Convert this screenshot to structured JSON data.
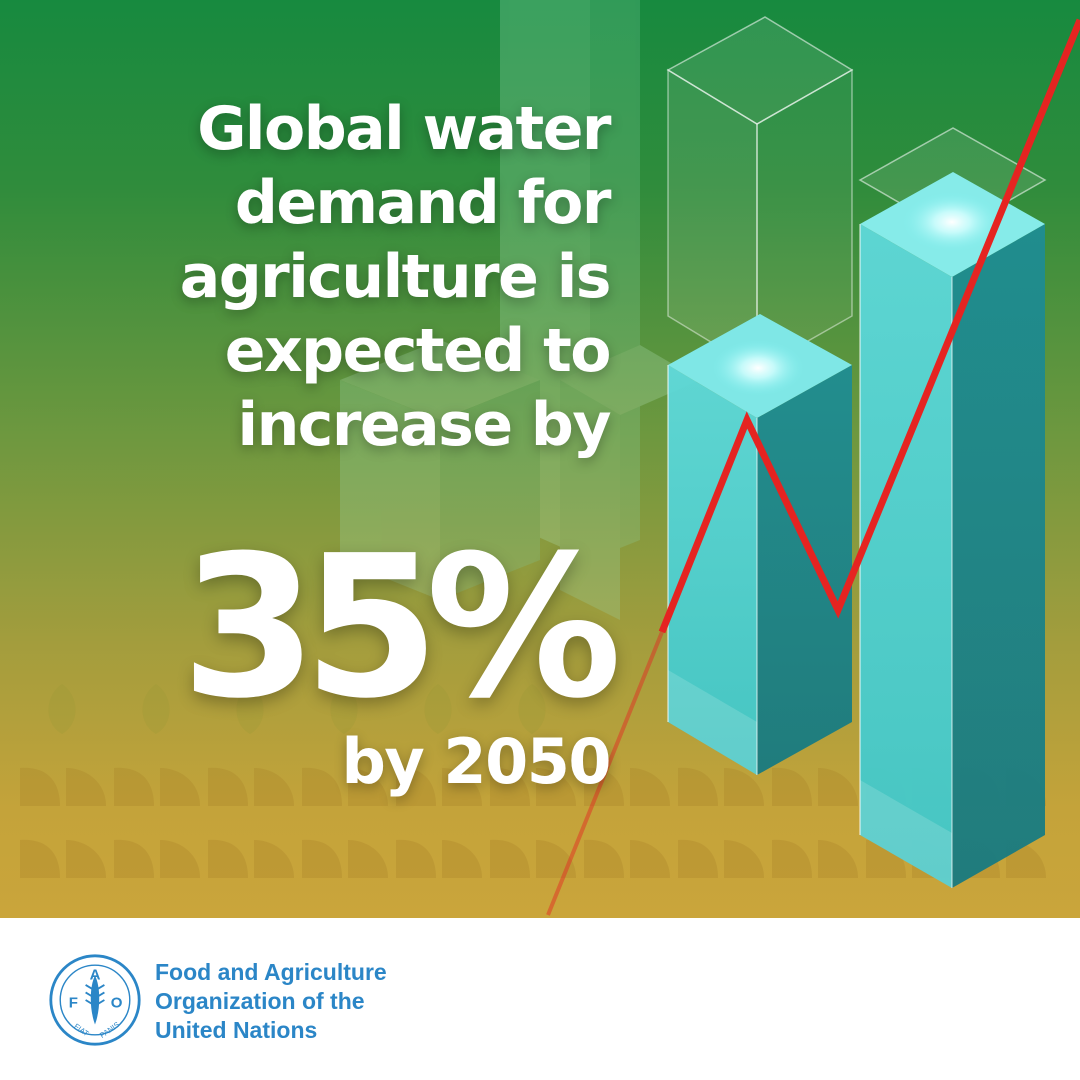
{
  "headline": {
    "lines": [
      "Global water",
      "demand for",
      "agriculture is",
      "expected to",
      "increase by"
    ]
  },
  "stat": {
    "percent": "35%",
    "year_text": "by 2050"
  },
  "organization": {
    "lines": [
      "Food and Agriculture",
      "Organization of the",
      "United Nations"
    ],
    "logo_letters": {
      "top": "A",
      "left": "F",
      "right": "O"
    },
    "logo_motto": {
      "left": "FIAT",
      "right": "PANIS"
    }
  },
  "colors": {
    "background_top": "#178a3f",
    "background_bottom": "#caa53b",
    "column": "#35c6c9",
    "trend_line": "#e52421",
    "fao_blue": "#2b86c7"
  },
  "icons": [
    "fao-logo-icon",
    "wheat-leaf-pattern",
    "glass-column-icon",
    "trend-line-icon"
  ]
}
